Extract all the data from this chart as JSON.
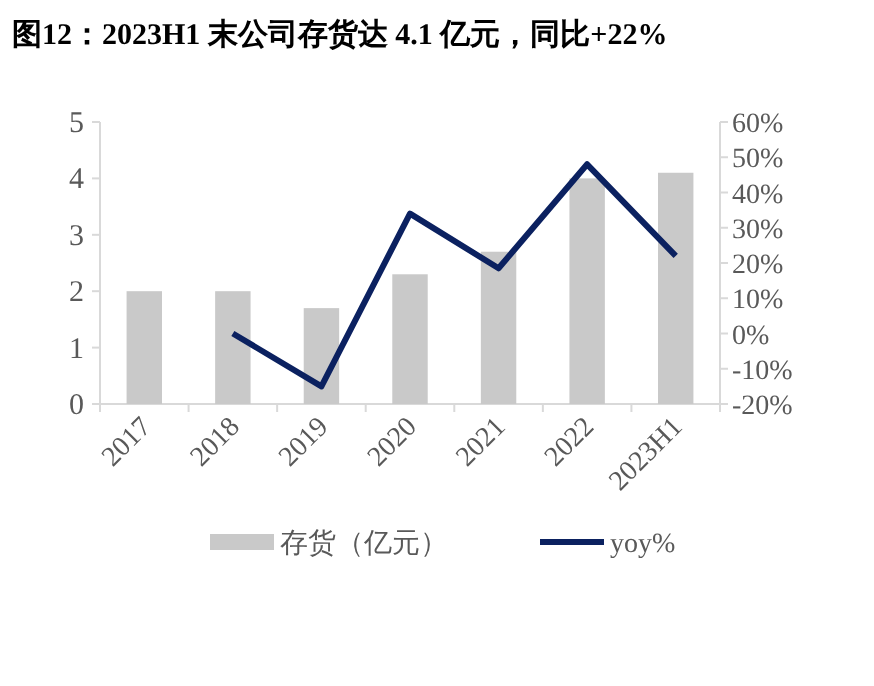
{
  "chart_data": {
    "type": "bar",
    "title": "图12：2023H1 末公司存货达 4.1 亿元，同比+22%",
    "categories": [
      "2017",
      "2018",
      "2019",
      "2020",
      "2021",
      "2022",
      "2023H1"
    ],
    "series": [
      {
        "name": "存货（亿元）",
        "color": "#c9c9c9",
        "values": [
          2.0,
          2.0,
          1.7,
          2.3,
          2.7,
          4.0,
          4.1
        ]
      },
      {
        "name": "yoy%",
        "type": "line",
        "axis": "y2",
        "color": "#0b2160",
        "values": [
          null,
          0,
          -15,
          34,
          18.5,
          48,
          22
        ]
      }
    ],
    "ylim": [
      0,
      5
    ],
    "yticks": [
      0,
      1,
      2,
      3,
      4,
      5
    ],
    "y2lim": [
      -20,
      60
    ],
    "y2ticks": [
      {
        "value": -20,
        "label": "-20%"
      },
      {
        "value": -10,
        "label": "-10%"
      },
      {
        "value": 0,
        "label": "0%"
      },
      {
        "value": 10,
        "label": "10%"
      },
      {
        "value": 20,
        "label": "20%"
      },
      {
        "value": 30,
        "label": "30%"
      },
      {
        "value": 40,
        "label": "40%"
      },
      {
        "value": 50,
        "label": "50%"
      },
      {
        "value": 60,
        "label": "60%"
      }
    ],
    "legend": "bottom",
    "grid": false,
    "marker": "none",
    "line_style": "solid"
  }
}
